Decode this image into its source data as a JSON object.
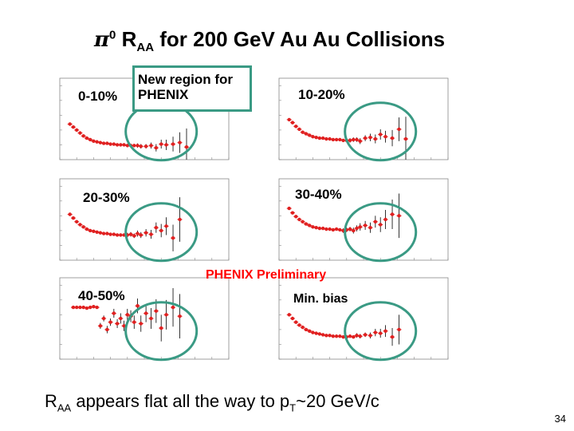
{
  "title": {
    "pi": "π",
    "pi_sup": "0",
    "r": " R",
    "r_sub": "AA",
    "rest": " for 200 GeV Au Au Collisions"
  },
  "note": "New region for PHENIX",
  "preliminary": "PHENIX Preliminary",
  "footer": {
    "r": "R",
    "r_sub": "AA",
    "mid": " appears flat all the way to p",
    "pt_sub": "T",
    "end": "~20 GeV/c"
  },
  "page_number": "34",
  "colors": {
    "points": "#e02020",
    "highlight": "#3a9a84",
    "errorbar": "#000000"
  },
  "chart_data": [
    {
      "type": "scatter",
      "label": "0-10%",
      "x": [
        1.2,
        1.6,
        2.0,
        2.4,
        2.8,
        3.2,
        3.6,
        4.0,
        4.4,
        4.8,
        5.2,
        5.6,
        6.0,
        6.4,
        6.8,
        7.2,
        7.6,
        8.0,
        8.4,
        8.8,
        9.2,
        9.6,
        10.2,
        10.8,
        11.4,
        12.0,
        12.6,
        13.4,
        14.2,
        15.0
      ],
      "y": [
        0.48,
        0.44,
        0.4,
        0.36,
        0.32,
        0.29,
        0.27,
        0.25,
        0.24,
        0.23,
        0.22,
        0.22,
        0.21,
        0.21,
        0.2,
        0.2,
        0.2,
        0.19,
        0.19,
        0.19,
        0.19,
        0.18,
        0.18,
        0.19,
        0.16,
        0.21,
        0.2,
        0.21,
        0.23,
        0.17
      ],
      "err": [
        0.01,
        0.01,
        0.01,
        0.01,
        0.01,
        0.01,
        0.01,
        0.01,
        0.01,
        0.01,
        0.01,
        0.01,
        0.01,
        0.01,
        0.02,
        0.02,
        0.02,
        0.02,
        0.02,
        0.02,
        0.03,
        0.03,
        0.03,
        0.04,
        0.05,
        0.06,
        0.07,
        0.1,
        0.14,
        0.25
      ],
      "xlim": [
        0,
        20
      ],
      "ylim": [
        0,
        1.1
      ]
    },
    {
      "type": "scatter",
      "label": "10-20%",
      "x": [
        1.2,
        1.6,
        2.0,
        2.4,
        2.8,
        3.2,
        3.6,
        4.0,
        4.4,
        4.8,
        5.2,
        5.6,
        6.0,
        6.4,
        6.8,
        7.2,
        7.6,
        8.0,
        8.4,
        8.8,
        9.2,
        9.6,
        10.2,
        10.8,
        11.4,
        12.0,
        12.6,
        13.4,
        14.2,
        15.0
      ],
      "y": [
        0.54,
        0.5,
        0.45,
        0.41,
        0.37,
        0.35,
        0.33,
        0.31,
        0.3,
        0.29,
        0.29,
        0.28,
        0.28,
        0.27,
        0.27,
        0.27,
        0.26,
        0.26,
        0.26,
        0.27,
        0.27,
        0.25,
        0.29,
        0.3,
        0.28,
        0.34,
        0.31,
        0.29,
        0.41,
        0.28
      ],
      "err": [
        0.01,
        0.01,
        0.01,
        0.01,
        0.01,
        0.01,
        0.01,
        0.01,
        0.01,
        0.01,
        0.01,
        0.01,
        0.01,
        0.02,
        0.02,
        0.02,
        0.02,
        0.02,
        0.03,
        0.03,
        0.03,
        0.04,
        0.04,
        0.05,
        0.06,
        0.07,
        0.08,
        0.11,
        0.16,
        0.3
      ],
      "xlim": [
        0,
        20
      ],
      "ylim": [
        0,
        1.1
      ]
    },
    {
      "type": "scatter",
      "label": "20-30%",
      "x": [
        1.2,
        1.6,
        2.0,
        2.4,
        2.8,
        3.2,
        3.6,
        4.0,
        4.4,
        4.8,
        5.2,
        5.6,
        6.0,
        6.4,
        6.8,
        7.2,
        7.6,
        8.0,
        8.4,
        8.8,
        9.2,
        9.6,
        10.2,
        10.8,
        11.4,
        12.0,
        12.6,
        13.4,
        14.2
      ],
      "y": [
        0.62,
        0.57,
        0.52,
        0.48,
        0.45,
        0.42,
        0.4,
        0.39,
        0.38,
        0.37,
        0.36,
        0.36,
        0.35,
        0.35,
        0.34,
        0.34,
        0.34,
        0.34,
        0.35,
        0.33,
        0.36,
        0.34,
        0.37,
        0.35,
        0.44,
        0.4,
        0.46,
        0.3,
        0.55
      ],
      "err": [
        0.01,
        0.01,
        0.01,
        0.01,
        0.01,
        0.01,
        0.01,
        0.01,
        0.01,
        0.01,
        0.01,
        0.01,
        0.02,
        0.02,
        0.02,
        0.02,
        0.02,
        0.03,
        0.03,
        0.03,
        0.04,
        0.04,
        0.05,
        0.06,
        0.07,
        0.09,
        0.12,
        0.18,
        0.3
      ],
      "xlim": [
        0,
        20
      ],
      "ylim": [
        0,
        1.1
      ]
    },
    {
      "type": "scatter",
      "label": "30-40%",
      "x": [
        1.2,
        1.6,
        2.0,
        2.4,
        2.8,
        3.2,
        3.6,
        4.0,
        4.4,
        4.8,
        5.2,
        5.6,
        6.0,
        6.4,
        6.8,
        7.2,
        7.6,
        8.0,
        8.4,
        8.8,
        9.2,
        9.6,
        10.2,
        10.8,
        11.4,
        12.0,
        12.6,
        13.4,
        14.2
      ],
      "y": [
        0.7,
        0.64,
        0.59,
        0.55,
        0.52,
        0.49,
        0.47,
        0.45,
        0.44,
        0.43,
        0.43,
        0.42,
        0.42,
        0.41,
        0.42,
        0.41,
        0.4,
        0.41,
        0.42,
        0.4,
        0.43,
        0.45,
        0.47,
        0.44,
        0.52,
        0.48,
        0.55,
        0.62,
        0.6
      ],
      "err": [
        0.01,
        0.01,
        0.01,
        0.01,
        0.01,
        0.01,
        0.01,
        0.01,
        0.01,
        0.01,
        0.01,
        0.02,
        0.02,
        0.02,
        0.02,
        0.02,
        0.03,
        0.03,
        0.03,
        0.04,
        0.04,
        0.05,
        0.06,
        0.07,
        0.08,
        0.1,
        0.13,
        0.2,
        0.3
      ],
      "xlim": [
        0,
        20
      ],
      "ylim": [
        0,
        1.1
      ]
    },
    {
      "type": "scatter",
      "label": "40-50%",
      "x": [
        1.6,
        2.0,
        2.4,
        2.8,
        3.2,
        3.6,
        4.0,
        4.4,
        4.8,
        5.2,
        5.6,
        6.0,
        6.4,
        6.8,
        7.2,
        7.6,
        8.0,
        8.4,
        8.8,
        9.2,
        9.6,
        10.2,
        10.8,
        11.4,
        12.0,
        12.6,
        13.4,
        14.2
      ],
      "y": [
        0.7,
        0.7,
        0.7,
        0.7,
        0.69,
        0.7,
        0.71,
        0.7,
        0.45,
        0.55,
        0.4,
        0.5,
        0.62,
        0.48,
        0.55,
        0.45,
        0.6,
        0.58,
        0.5,
        0.72,
        0.48,
        0.62,
        0.55,
        0.65,
        0.42,
        0.6,
        0.7,
        0.58
      ],
      "err": [
        0.01,
        0.01,
        0.01,
        0.01,
        0.01,
        0.01,
        0.02,
        0.02,
        0.04,
        0.04,
        0.05,
        0.05,
        0.06,
        0.06,
        0.07,
        0.07,
        0.08,
        0.08,
        0.09,
        0.1,
        0.11,
        0.12,
        0.14,
        0.16,
        0.18,
        0.2,
        0.26,
        0.3
      ],
      "xlim": [
        0,
        20
      ],
      "ylim": [
        0,
        1.1
      ]
    },
    {
      "type": "scatter",
      "label": "Min. bias",
      "x": [
        1.2,
        1.6,
        2.0,
        2.4,
        2.8,
        3.2,
        3.6,
        4.0,
        4.4,
        4.8,
        5.2,
        5.6,
        6.0,
        6.4,
        6.8,
        7.2,
        7.6,
        8.0,
        8.4,
        8.8,
        9.2,
        9.6,
        10.2,
        10.8,
        11.4,
        12.0,
        12.6,
        13.4,
        14.2
      ],
      "y": [
        0.6,
        0.55,
        0.5,
        0.46,
        0.43,
        0.4,
        0.38,
        0.36,
        0.35,
        0.34,
        0.33,
        0.32,
        0.32,
        0.31,
        0.31,
        0.31,
        0.3,
        0.3,
        0.31,
        0.3,
        0.32,
        0.31,
        0.33,
        0.32,
        0.36,
        0.35,
        0.38,
        0.3,
        0.4
      ],
      "err": [
        0.01,
        0.01,
        0.01,
        0.01,
        0.01,
        0.01,
        0.01,
        0.01,
        0.01,
        0.01,
        0.01,
        0.01,
        0.01,
        0.01,
        0.01,
        0.02,
        0.02,
        0.02,
        0.02,
        0.02,
        0.03,
        0.03,
        0.03,
        0.04,
        0.05,
        0.06,
        0.08,
        0.12,
        0.2
      ],
      "xlim": [
        0,
        20
      ],
      "ylim": [
        0,
        1.1
      ]
    }
  ]
}
